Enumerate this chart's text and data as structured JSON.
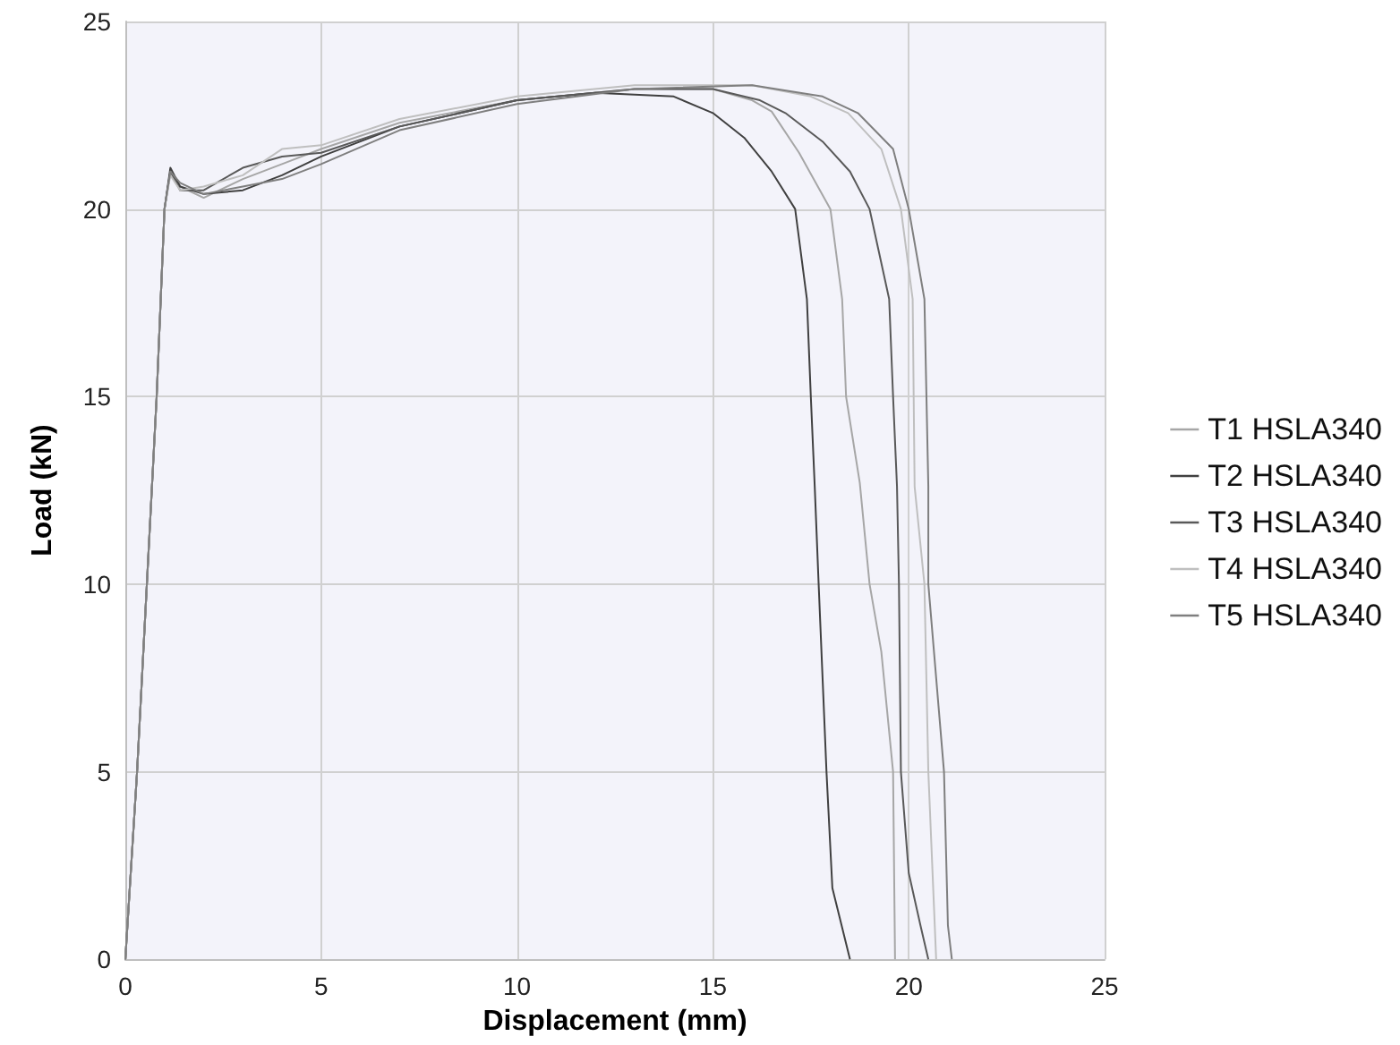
{
  "chart_data": {
    "type": "line",
    "xlabel": "Displacement (mm)",
    "ylabel": "Load (kN)",
    "xlim": [
      0,
      25
    ],
    "xticks": [
      0,
      5,
      10,
      15,
      20,
      25
    ],
    "ylim": [
      0,
      25
    ],
    "yticks": [
      0,
      5,
      10,
      15,
      20,
      25
    ],
    "grid": true,
    "legend": "right",
    "marker": "none",
    "line_style": "solid",
    "series": [
      {
        "name": "T1 HSLA340",
        "color": "#a6a6a6",
        "x": [
          0,
          0.3,
          0.55,
          0.8,
          1.0,
          1.15,
          1.4,
          2,
          3,
          4,
          5,
          7,
          10,
          13,
          15,
          16,
          16.5,
          17.2,
          18.0,
          18.3,
          18.4,
          18.75,
          19.0,
          19.3,
          19.6,
          19.65
        ],
        "values": [
          0,
          5,
          10,
          15,
          20,
          21.0,
          20.6,
          20.3,
          20.8,
          21.2,
          21.6,
          22.3,
          22.9,
          23.2,
          23.2,
          22.9,
          22.6,
          21.5,
          20,
          17.6,
          15,
          12.7,
          10,
          8.2,
          5,
          0
        ]
      },
      {
        "name": "T2 HSLA340",
        "color": "#404040",
        "x": [
          0,
          0.3,
          0.55,
          0.8,
          1.0,
          1.15,
          1.4,
          2,
          3,
          4,
          5,
          7,
          10,
          12,
          14,
          15,
          15.8,
          16.5,
          17.1,
          17.4,
          17.5,
          17.6,
          17.7,
          17.9,
          18.05,
          18.5
        ],
        "values": [
          0,
          5,
          10,
          15,
          20,
          21.1,
          20.6,
          20.4,
          20.5,
          20.9,
          21.4,
          22.2,
          22.9,
          23.1,
          23.0,
          22.56,
          21.9,
          21.0,
          20,
          17.6,
          15,
          12.6,
          10,
          5,
          1.9,
          0
        ]
      },
      {
        "name": "T3 HSLA340",
        "color": "#595959",
        "x": [
          0,
          0.3,
          0.55,
          0.8,
          1.0,
          1.15,
          1.4,
          2,
          3,
          4,
          5,
          7,
          10,
          13,
          15,
          16.2,
          16.85,
          17.8,
          18.5,
          19.0,
          19.5,
          19.6,
          19.7,
          19.75,
          19.8,
          20.0,
          20.3,
          20.5
        ],
        "values": [
          0,
          5,
          10,
          15,
          20,
          21.0,
          20.5,
          20.5,
          21.1,
          21.4,
          21.5,
          22.2,
          22.9,
          23.2,
          23.2,
          22.9,
          22.56,
          21.8,
          21.0,
          20,
          17.6,
          15,
          12.6,
          10,
          5,
          2.3,
          0.9,
          0
        ]
      },
      {
        "name": "T4 HSLA340",
        "color": "#bfbfbf",
        "x": [
          0,
          0.3,
          0.55,
          0.8,
          1.0,
          1.15,
          1.4,
          2,
          3,
          4,
          5,
          7,
          10,
          13,
          16,
          17.5,
          18.45,
          19.3,
          19.8,
          20.1,
          20.15,
          20.4,
          20.5,
          20.7
        ],
        "values": [
          0,
          5,
          10,
          15,
          20,
          20.9,
          20.5,
          20.6,
          20.9,
          21.6,
          21.7,
          22.4,
          23.0,
          23.3,
          23.3,
          23.0,
          22.56,
          21.6,
          20,
          17.6,
          12.6,
          10,
          5,
          0
        ]
      },
      {
        "name": "T5 HSLA340",
        "color": "#7f7f7f",
        "x": [
          0,
          0.3,
          0.55,
          0.8,
          1.0,
          1.15,
          1.4,
          2,
          3,
          4,
          5,
          7,
          10,
          13,
          16,
          17.8,
          18.7,
          19.6,
          20.0,
          20.4,
          20.5,
          20.5,
          20.9,
          21.0,
          21.1
        ],
        "values": [
          0,
          5,
          10,
          15,
          20,
          21.0,
          20.7,
          20.4,
          20.6,
          20.8,
          21.2,
          22.1,
          22.8,
          23.2,
          23.3,
          23.0,
          22.56,
          21.6,
          20,
          17.6,
          12.6,
          10,
          5,
          0.9,
          0
        ]
      }
    ]
  }
}
